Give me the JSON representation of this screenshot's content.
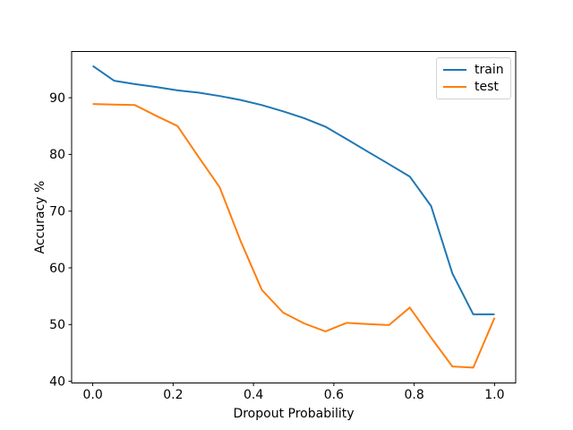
{
  "chart_data": {
    "type": "line",
    "title": "",
    "xlabel": "Dropout Probability",
    "ylabel": "Accuracy %",
    "x": [
      0.0,
      0.053,
      0.105,
      0.158,
      0.211,
      0.263,
      0.316,
      0.368,
      0.421,
      0.474,
      0.526,
      0.579,
      0.632,
      0.684,
      0.737,
      0.789,
      0.842,
      0.895,
      0.947,
      1.0
    ],
    "series": [
      {
        "name": "train",
        "color": "#1f77b4",
        "values": [
          95.6,
          93.0,
          92.4,
          91.9,
          91.3,
          90.9,
          90.3,
          89.6,
          88.7,
          87.6,
          86.4,
          84.9,
          82.7,
          80.5,
          78.3,
          76.1,
          70.9,
          59.0,
          51.8,
          51.8
        ]
      },
      {
        "name": "test",
        "color": "#ff7f0e",
        "values": [
          88.9,
          88.8,
          88.7,
          86.8,
          85.0,
          79.6,
          74.2,
          64.7,
          56.1,
          52.1,
          50.2,
          48.8,
          50.3,
          50.1,
          49.9,
          53.0,
          47.7,
          42.6,
          42.4,
          51.2
        ]
      }
    ],
    "x_ticks": [
      0.0,
      0.2,
      0.4,
      0.6,
      0.8,
      1.0
    ],
    "x_tick_labels": [
      "0.0",
      "0.2",
      "0.4",
      "0.6",
      "0.8",
      "1.0"
    ],
    "y_ticks": [
      40,
      50,
      60,
      70,
      80,
      90
    ],
    "y_tick_labels": [
      "40",
      "50",
      "60",
      "70",
      "80",
      "90"
    ],
    "xlim": [
      -0.0526,
      1.0526
    ],
    "ylim": [
      39.7,
      98.15
    ],
    "grid": false,
    "legend": {
      "position": "upper right",
      "entries": [
        "train",
        "test"
      ]
    }
  },
  "colors": {
    "background": "#ffffff",
    "axes": "#000000",
    "text": "#000000",
    "train": "#1f77b4",
    "test": "#ff7f0e",
    "legend_border": "#d2d2d2"
  }
}
